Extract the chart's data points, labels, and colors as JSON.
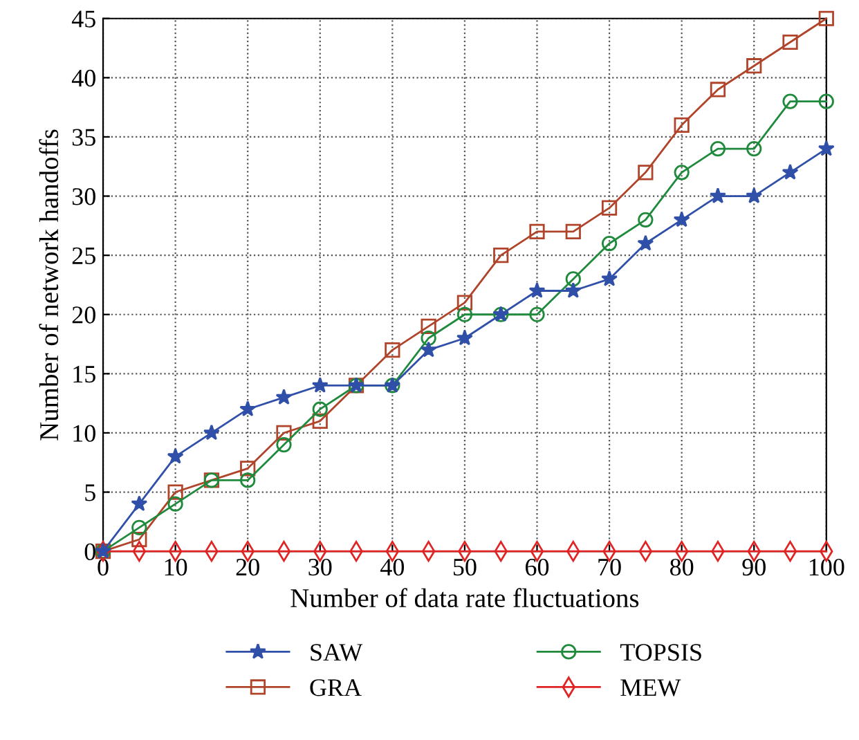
{
  "chart_data": {
    "type": "line",
    "xlabel": "Number of data rate fluctuations",
    "ylabel": "Number of network handoffs",
    "x": [
      0,
      5,
      10,
      15,
      20,
      25,
      30,
      35,
      40,
      45,
      50,
      55,
      60,
      65,
      70,
      75,
      80,
      85,
      90,
      95,
      100
    ],
    "series": [
      {
        "name": "SAW",
        "color": "#2f4fa8",
        "marker": "star",
        "values": [
          0,
          4,
          8,
          10,
          12,
          13,
          14,
          14,
          14,
          17,
          18,
          20,
          22,
          22,
          23,
          26,
          28,
          30,
          30,
          32,
          34
        ]
      },
      {
        "name": "GRA",
        "color": "#b0442a",
        "marker": "square",
        "values": [
          0,
          1,
          5,
          6,
          7,
          10,
          11,
          14,
          17,
          19,
          21,
          25,
          27,
          27,
          29,
          32,
          36,
          39,
          41,
          43,
          45
        ]
      },
      {
        "name": "TOPSIS",
        "color": "#1f8a3c",
        "marker": "circle",
        "values": [
          0,
          2,
          4,
          6,
          6,
          9,
          12,
          14,
          14,
          18,
          20,
          20,
          20,
          23,
          26,
          28,
          32,
          34,
          34,
          38,
          38
        ]
      },
      {
        "name": "MEW",
        "color": "#e02424",
        "marker": "diamond",
        "values": [
          0,
          0,
          0,
          0,
          0,
          0,
          0,
          0,
          0,
          0,
          0,
          0,
          0,
          0,
          0,
          0,
          0,
          0,
          0,
          0,
          0
        ]
      }
    ],
    "xlim": [
      0,
      100
    ],
    "xticks": [
      0,
      10,
      20,
      30,
      40,
      50,
      60,
      70,
      80,
      90,
      100
    ],
    "ylim": [
      0,
      45
    ],
    "yticks": [
      0,
      5,
      10,
      15,
      20,
      25,
      30,
      35,
      40,
      45
    ],
    "grid": true,
    "legend": "bottom",
    "line_style": "solid"
  }
}
